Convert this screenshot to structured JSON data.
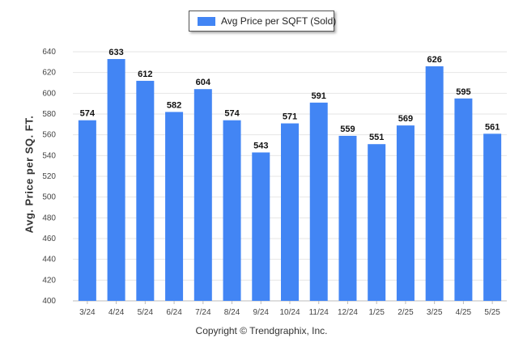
{
  "legend": {
    "label": "Avg Price per SQFT (Sold)",
    "color": "#4285f4"
  },
  "footer": {
    "copyright": "Copyright © Trendgraphix, Inc."
  },
  "chart_data": {
    "type": "bar",
    "ylabel": "Avg. Price per SQ. FT.",
    "ylim": [
      400,
      640
    ],
    "ytick_step": 20,
    "grid": true,
    "legend_position": "top-center",
    "categories": [
      "3/24",
      "4/24",
      "5/24",
      "6/24",
      "7/24",
      "8/24",
      "9/24",
      "10/24",
      "11/24",
      "12/24",
      "1/25",
      "2/25",
      "3/25",
      "4/25",
      "5/25"
    ],
    "series": [
      {
        "name": "Avg Price per SQFT (Sold)",
        "color": "#4285f4",
        "values": [
          574,
          633,
          612,
          582,
          604,
          574,
          543,
          571,
          591,
          559,
          551,
          569,
          626,
          595,
          561
        ]
      }
    ]
  }
}
